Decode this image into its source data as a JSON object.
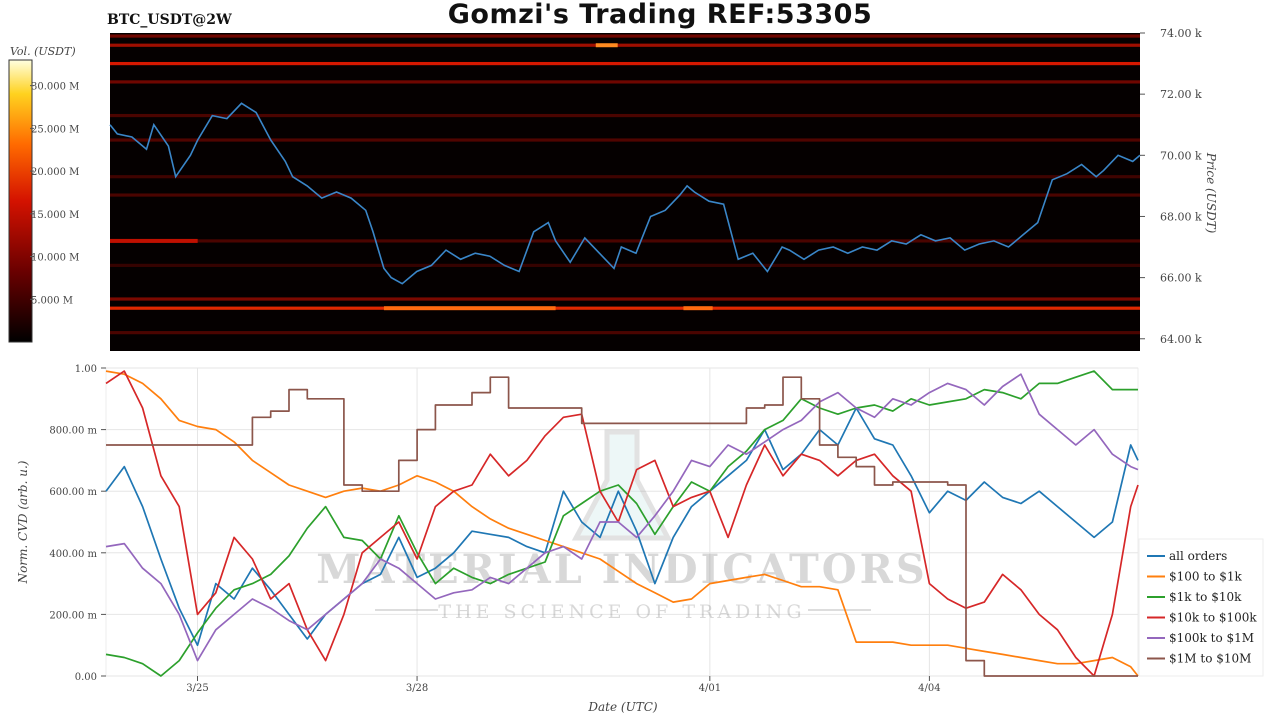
{
  "header": {
    "title": "Gomzi's Trading REF:53305",
    "symbol": "BTC_USDT@2W"
  },
  "watermark": {
    "line1": "MATERIAL INDICATORS",
    "line2": "THE SCIENCE OF TRADING"
  },
  "colorbar": {
    "label": "Vol. (USDT)",
    "ticks": [
      "30.000 M",
      "25.000 M",
      "20.000 M",
      "15.000 M",
      "10.000 M",
      "5.000 M"
    ],
    "tick_values": [
      30,
      25,
      20,
      15,
      10,
      5
    ],
    "range": [
      0,
      33
    ],
    "colors": [
      "#000000",
      "#6a0000",
      "#d41200",
      "#ff6a00",
      "#ffd21f",
      "#ffffff"
    ]
  },
  "chart_data": [
    {
      "type": "heatmap",
      "title": "BTC_USDT@2W",
      "ylabel": "Price (USDT)",
      "yticks": [
        "74.00 k",
        "72.00 k",
        "70.00 k",
        "68.00 k",
        "66.00 k",
        "64.00 k"
      ],
      "ytick_values": [
        74,
        72,
        70,
        68,
        66,
        64
      ],
      "ylim": [
        63.6,
        74.0
      ],
      "xlim": [
        0,
        14.1
      ],
      "levels": [
        {
          "price": 65.0,
          "intensity": 0.8,
          "color": "#e02800"
        },
        {
          "price": 65.3,
          "intensity": 0.5,
          "color": "#8a0a00"
        },
        {
          "price": 73.0,
          "intensity": 0.8,
          "color": "#d61800"
        },
        {
          "price": 73.6,
          "intensity": 0.5,
          "color": "#b01000"
        },
        {
          "price": 73.9,
          "intensity": 0.4,
          "color": "#8a0800"
        },
        {
          "price": 72.4,
          "intensity": 0.4,
          "color": "#8a0800"
        },
        {
          "price": 71.3,
          "intensity": 0.3,
          "color": "#6a0500"
        },
        {
          "price": 70.5,
          "intensity": 0.3,
          "color": "#700500"
        },
        {
          "price": 69.3,
          "intensity": 0.25,
          "color": "#600400"
        },
        {
          "price": 68.7,
          "intensity": 0.3,
          "color": "#6a0500"
        },
        {
          "price": 67.2,
          "intensity": 0.3,
          "color": "#6a0500"
        },
        {
          "price": 64.2,
          "intensity": 0.3,
          "color": "#6a0500"
        },
        {
          "price": 66.4,
          "intensity": 0.2,
          "color": "#550300"
        }
      ],
      "hot_segments": [
        {
          "price": 65.0,
          "x0": 3.75,
          "x1": 6.1,
          "color": "#ff6a10"
        },
        {
          "price": 65.0,
          "x0": 7.85,
          "x1": 8.25,
          "color": "#ff6a10"
        },
        {
          "price": 73.6,
          "x0": 6.65,
          "x1": 6.95,
          "color": "#ff8a20"
        },
        {
          "price": 67.2,
          "x0": 0.0,
          "x1": 1.2,
          "color": "#c01000"
        }
      ],
      "series": [
        {
          "name": "",
          "color": "#3a86c8",
          "x": [
            0,
            0.1,
            0.3,
            0.5,
            0.6,
            0.8,
            0.9,
            1.1,
            1.2,
            1.4,
            1.6,
            1.8,
            2.0,
            2.2,
            2.4,
            2.5,
            2.7,
            2.9,
            3.1,
            3.3,
            3.5,
            3.6,
            3.75,
            3.85,
            4.0,
            4.2,
            4.4,
            4.6,
            4.8,
            5.0,
            5.2,
            5.4,
            5.6,
            5.8,
            6.0,
            6.1,
            6.3,
            6.5,
            6.7,
            6.9,
            7.0,
            7.2,
            7.4,
            7.6,
            7.8,
            7.9,
            8.0,
            8.2,
            8.4,
            8.6,
            8.8,
            9.0,
            9.2,
            9.3,
            9.5,
            9.7,
            9.9,
            10.1,
            10.3,
            10.5,
            10.7,
            10.9,
            11.1,
            11.3,
            11.5,
            11.7,
            11.9,
            12.1,
            12.3,
            12.5,
            12.7,
            12.9,
            13.1,
            13.3,
            13.5,
            13.6,
            13.8,
            14.0,
            14.1
          ],
          "y": [
            71.0,
            70.7,
            70.6,
            70.2,
            71.0,
            70.3,
            69.3,
            70.0,
            70.5,
            71.3,
            71.2,
            71.7,
            71.4,
            70.5,
            69.8,
            69.3,
            69.0,
            68.6,
            68.8,
            68.6,
            68.2,
            67.5,
            66.3,
            66.0,
            65.8,
            66.2,
            66.4,
            66.9,
            66.6,
            66.8,
            66.7,
            66.4,
            66.2,
            67.5,
            67.8,
            67.2,
            66.5,
            67.3,
            66.8,
            66.3,
            67.0,
            66.8,
            68.0,
            68.2,
            68.7,
            69.0,
            68.8,
            68.5,
            68.4,
            66.6,
            66.8,
            66.2,
            67.0,
            66.9,
            66.6,
            66.9,
            67.0,
            66.8,
            67.0,
            66.9,
            67.2,
            67.1,
            67.4,
            67.2,
            67.3,
            66.9,
            67.1,
            67.2,
            67.0,
            67.4,
            67.8,
            69.2,
            69.4,
            69.7,
            69.3,
            69.5,
            70.0,
            69.8,
            70.0
          ]
        }
      ]
    },
    {
      "type": "line",
      "xlabel": "Date (UTC)",
      "ylabel": "Norm. CVD (arb. u.)",
      "categories": [
        "3/25",
        "3/28",
        "4/01",
        "4/04"
      ],
      "xtick_values": [
        1.25,
        4.25,
        8.25,
        11.25
      ],
      "xlim": [
        0,
        14.1
      ],
      "yticks": [
        "0.00",
        "200.00 m",
        "400.00 m",
        "600.00 m",
        "800.00 m",
        "1.00"
      ],
      "ytick_values": [
        0,
        0.2,
        0.4,
        0.6,
        0.8,
        1.0
      ],
      "ylim": [
        0,
        1.0
      ],
      "grid": true,
      "legend": "bottom-right",
      "x": [
        0,
        0.25,
        0.5,
        0.75,
        1,
        1.25,
        1.5,
        1.75,
        2,
        2.25,
        2.5,
        2.75,
        3,
        3.25,
        3.5,
        3.75,
        4,
        4.25,
        4.5,
        4.75,
        5,
        5.25,
        5.5,
        5.75,
        6,
        6.25,
        6.5,
        6.75,
        7,
        7.25,
        7.5,
        7.75,
        8,
        8.25,
        8.5,
        8.75,
        9,
        9.25,
        9.5,
        9.75,
        10,
        10.25,
        10.5,
        10.75,
        11,
        11.25,
        11.5,
        11.75,
        12,
        12.25,
        12.5,
        12.75,
        13,
        13.25,
        13.5,
        13.75,
        14,
        14.1
      ],
      "series": [
        {
          "name": "all orders",
          "color": "#1f77b4",
          "values": [
            0.6,
            0.68,
            0.55,
            0.38,
            0.22,
            0.1,
            0.3,
            0.25,
            0.35,
            0.28,
            0.2,
            0.12,
            0.2,
            0.25,
            0.3,
            0.33,
            0.45,
            0.32,
            0.35,
            0.4,
            0.47,
            0.46,
            0.45,
            0.42,
            0.4,
            0.6,
            0.5,
            0.45,
            0.6,
            0.47,
            0.3,
            0.45,
            0.55,
            0.6,
            0.65,
            0.7,
            0.8,
            0.67,
            0.72,
            0.8,
            0.75,
            0.87,
            0.77,
            0.75,
            0.65,
            0.53,
            0.6,
            0.57,
            0.63,
            0.58,
            0.56,
            0.6,
            0.55,
            0.5,
            0.45,
            0.5,
            0.75,
            0.7
          ]
        },
        {
          "name": "$100 to $1k",
          "color": "#ff7f0e",
          "values": [
            0.99,
            0.98,
            0.95,
            0.9,
            0.83,
            0.81,
            0.8,
            0.76,
            0.7,
            0.66,
            0.62,
            0.6,
            0.58,
            0.6,
            0.61,
            0.6,
            0.62,
            0.65,
            0.63,
            0.6,
            0.55,
            0.51,
            0.48,
            0.46,
            0.44,
            0.42,
            0.4,
            0.38,
            0.34,
            0.3,
            0.27,
            0.24,
            0.25,
            0.3,
            0.31,
            0.32,
            0.33,
            0.31,
            0.29,
            0.29,
            0.28,
            0.11,
            0.11,
            0.11,
            0.1,
            0.1,
            0.1,
            0.09,
            0.08,
            0.07,
            0.06,
            0.05,
            0.04,
            0.04,
            0.05,
            0.06,
            0.03,
            0.0
          ]
        },
        {
          "name": "$1k to $10k",
          "color": "#2ca02c",
          "values": [
            0.07,
            0.06,
            0.04,
            0.0,
            0.05,
            0.14,
            0.22,
            0.28,
            0.3,
            0.33,
            0.39,
            0.48,
            0.55,
            0.45,
            0.44,
            0.38,
            0.52,
            0.4,
            0.3,
            0.35,
            0.32,
            0.3,
            0.33,
            0.35,
            0.37,
            0.52,
            0.56,
            0.6,
            0.62,
            0.56,
            0.46,
            0.55,
            0.63,
            0.6,
            0.68,
            0.73,
            0.8,
            0.83,
            0.9,
            0.87,
            0.85,
            0.87,
            0.88,
            0.86,
            0.9,
            0.88,
            0.89,
            0.9,
            0.93,
            0.92,
            0.9,
            0.95,
            0.95,
            0.97,
            0.99,
            0.93,
            0.93,
            0.93
          ]
        },
        {
          "name": "$10k to $100k",
          "color": "#d62728",
          "values": [
            0.95,
            0.99,
            0.87,
            0.65,
            0.55,
            0.2,
            0.27,
            0.45,
            0.38,
            0.25,
            0.3,
            0.15,
            0.05,
            0.2,
            0.4,
            0.45,
            0.5,
            0.38,
            0.55,
            0.6,
            0.62,
            0.72,
            0.65,
            0.7,
            0.78,
            0.84,
            0.85,
            0.6,
            0.5,
            0.67,
            0.7,
            0.55,
            0.58,
            0.6,
            0.45,
            0.62,
            0.75,
            0.65,
            0.72,
            0.7,
            0.65,
            0.7,
            0.72,
            0.65,
            0.6,
            0.3,
            0.25,
            0.22,
            0.24,
            0.33,
            0.28,
            0.2,
            0.15,
            0.06,
            0.0,
            0.2,
            0.55,
            0.62
          ]
        },
        {
          "name": "$100k to $1M",
          "color": "#9467bd",
          "values": [
            0.42,
            0.43,
            0.35,
            0.3,
            0.2,
            0.05,
            0.15,
            0.2,
            0.25,
            0.22,
            0.18,
            0.15,
            0.2,
            0.25,
            0.3,
            0.38,
            0.35,
            0.3,
            0.25,
            0.27,
            0.28,
            0.32,
            0.3,
            0.35,
            0.4,
            0.42,
            0.38,
            0.5,
            0.5,
            0.45,
            0.52,
            0.6,
            0.7,
            0.68,
            0.75,
            0.72,
            0.76,
            0.8,
            0.83,
            0.89,
            0.92,
            0.87,
            0.84,
            0.9,
            0.88,
            0.92,
            0.95,
            0.93,
            0.88,
            0.94,
            0.98,
            0.85,
            0.8,
            0.75,
            0.8,
            0.72,
            0.68,
            0.67
          ]
        },
        {
          "name": "$1M to $10M",
          "color": "#8c564b",
          "values": [
            0.75,
            0.75,
            0.75,
            0.75,
            0.75,
            0.75,
            0.75,
            0.75,
            0.84,
            0.86,
            0.93,
            0.9,
            0.9,
            0.62,
            0.6,
            0.6,
            0.7,
            0.8,
            0.88,
            0.88,
            0.92,
            0.97,
            0.87,
            0.87,
            0.87,
            0.87,
            0.82,
            0.82,
            0.82,
            0.82,
            0.82,
            0.82,
            0.82,
            0.82,
            0.82,
            0.87,
            0.88,
            0.97,
            0.9,
            0.75,
            0.71,
            0.68,
            0.62,
            0.63,
            0.63,
            0.63,
            0.62,
            0.05,
            0.0,
            0.0,
            0.0,
            0.0,
            0.0,
            0.0,
            0.0,
            0.0,
            0.0,
            0.0
          ]
        }
      ]
    }
  ]
}
